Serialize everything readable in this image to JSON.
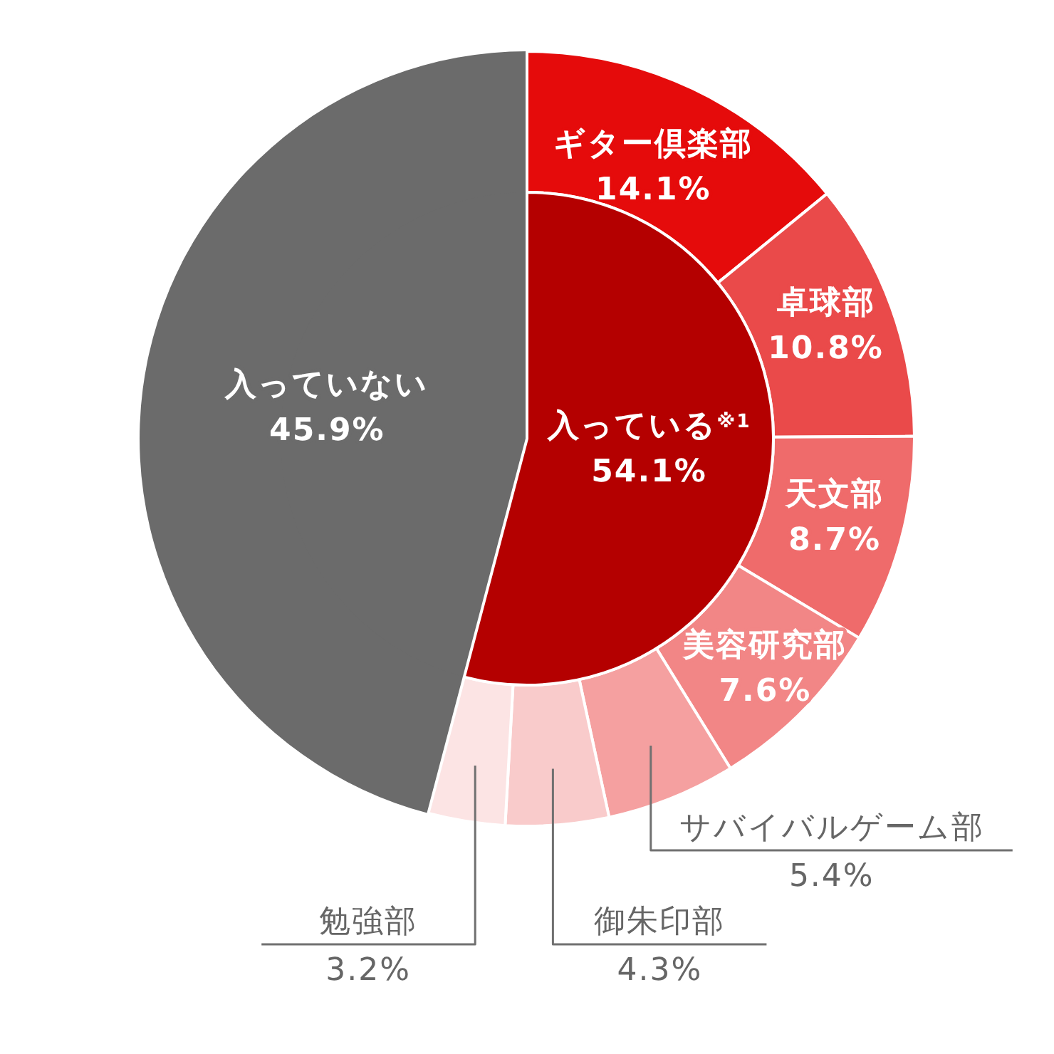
{
  "chart_data": [
    {
      "type": "pie",
      "categories": [
        "入っている$^{※1}$",
        "入っていない"
      ],
      "values": [
        54.1,
        45.9
      ],
      "value_labels": [
        "54.1%",
        "45.9%"
      ],
      "colors": [
        "#b40000",
        "#6b6b6b"
      ]
    },
    {
      "type": "donut",
      "categories": [
        "ギター倶楽部",
        "卓球部",
        "天文部",
        "美容研究部",
        "サバイバルゲーム部",
        "御朱印部",
        "勉強部",
        null
      ],
      "values": [
        14.1,
        10.8,
        8.7,
        7.6,
        5.4,
        4.3,
        3.2,
        45.9
      ],
      "value_labels": [
        "14.1%",
        "10.8%",
        "8.7%",
        "7.6%",
        "5.4%",
        "4.3%",
        "3.2%",
        null
      ],
      "colors": [
        "#e50b0b",
        "#ea4a4a",
        "#ef6b6b",
        "#f28686",
        "#f5a0a0",
        "#f9cbcb",
        "#fce4e4",
        "#6b6b6b"
      ]
    }
  ]
}
